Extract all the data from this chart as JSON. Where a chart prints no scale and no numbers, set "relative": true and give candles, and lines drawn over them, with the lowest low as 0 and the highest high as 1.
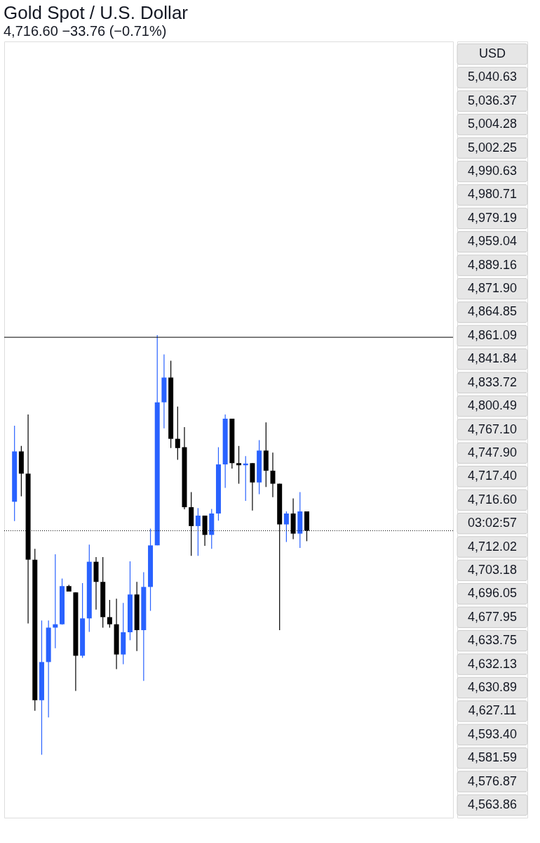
{
  "chart_data": {
    "type": "candlestick",
    "title": "Gold Spot / U.S. Dollar",
    "subtitle": "4,716.60  −33.76 (−0.71%)",
    "relative": true,
    "categories": [
      null,
      null,
      null,
      null,
      null,
      null,
      null,
      null,
      null,
      null,
      null,
      null,
      null,
      null,
      null,
      null,
      null,
      null,
      null,
      null,
      null,
      null,
      null,
      null,
      null,
      null,
      null,
      null,
      null,
      null,
      null,
      null,
      null,
      null,
      null,
      null,
      null,
      null,
      null,
      null,
      null,
      null,
      null,
      null
    ],
    "ohlc": [
      [
        0.603,
        0.784,
        0.557,
        0.723
      ],
      [
        0.723,
        0.736,
        0.616,
        0.67
      ],
      [
        0.67,
        0.811,
        0.313,
        0.465
      ],
      [
        0.465,
        0.491,
        0.105,
        0.13
      ],
      [
        0.13,
        0.32,
        0,
        0.221
      ],
      [
        0.221,
        0.32,
        0.089,
        0.303
      ],
      [
        0.303,
        0.478,
        0.254,
        0.311
      ],
      [
        0.311,
        0.42,
        0.31,
        0.402
      ],
      [
        0.402,
        0.405,
        0.389,
        0.389
      ],
      [
        0.387,
        0.387,
        0.152,
        0.236
      ],
      [
        0.236,
        0.409,
        0.231,
        0.325
      ],
      [
        0.325,
        0.501,
        0.293,
        0.46
      ],
      [
        0.46,
        0.471,
        0.346,
        0.412
      ],
      [
        0.412,
        0.471,
        0.303,
        0.328
      ],
      [
        0.328,
        0.369,
        0.303,
        0.311
      ],
      [
        0.311,
        0.372,
        0.204,
        0.239
      ],
      [
        0.239,
        0.362,
        0.216,
        0.292
      ],
      [
        0.292,
        0.461,
        0.273,
        0.382
      ],
      [
        0.382,
        0.412,
        0.247,
        0.297
      ],
      [
        0.297,
        0.435,
        0.176,
        0.4
      ],
      [
        0.4,
        0.539,
        0.343,
        0.499
      ],
      [
        0.499,
        1,
        0.499,
        0.84
      ],
      [
        0.84,
        0.954,
        0.778,
        0.899
      ],
      [
        0.899,
        0.939,
        0.731,
        0.753
      ],
      [
        0.753,
        0.83,
        0.703,
        0.731
      ],
      [
        0.733,
        0.781,
        0.585,
        0.59
      ],
      [
        0.59,
        0.626,
        0.474,
        0.545
      ],
      [
        0.545,
        0.588,
        0.474,
        0.57
      ],
      [
        0.57,
        0.57,
        0.498,
        0.524
      ],
      [
        0.524,
        0.586,
        0.491,
        0.575
      ],
      [
        0.575,
        0.733,
        0.558,
        0.692
      ],
      [
        0.692,
        0.811,
        0.636,
        0.801
      ],
      [
        0.801,
        0.801,
        0.682,
        0.695
      ],
      [
        0.695,
        0.736,
        0.646,
        0.69
      ],
      [
        0.69,
        0.712,
        0.605,
        0.694
      ],
      [
        0.695,
        0.695,
        0.582,
        0.649
      ],
      [
        0.649,
        0.75,
        0.621,
        0.725
      ],
      [
        0.725,
        0.792,
        0.638,
        0.677
      ],
      [
        0.677,
        0.72,
        0.614,
        0.646
      ],
      [
        0.646,
        0.646,
        0.297,
        0.549
      ],
      [
        0.549,
        0.58,
        0.507,
        0.575
      ],
      [
        0.575,
        0.611,
        0.514,
        0.527
      ],
      [
        0.527,
        0.626,
        0.493,
        0.58
      ],
      [
        0.58,
        0.58,
        0.509,
        0.534
      ]
    ],
    "colors": [
      "#2962ff",
      "#000000",
      "#000000",
      "#000000",
      "#2962ff",
      "#2962ff",
      "#2962ff",
      "#2962ff",
      "#000000",
      "#000000",
      "#2962ff",
      "#2962ff",
      "#000000",
      "#000000",
      "#000000",
      "#000000",
      "#2962ff",
      "#2962ff",
      "#000000",
      "#2962ff",
      "#2962ff",
      "#2962ff",
      "#2962ff",
      "#000000",
      "#000000",
      "#000000",
      "#000000",
      "#2962ff",
      "#000000",
      "#2962ff",
      "#2962ff",
      "#2962ff",
      "#000000",
      "#000000",
      "#2962ff",
      "#000000",
      "#2962ff",
      "#000000",
      "#000000",
      "#000000",
      "#2962ff",
      "#000000",
      "#2962ff",
      "#000000"
    ],
    "ref_lines": [
      {
        "axis": "y",
        "value": 0.534,
        "line_style": "dotted",
        "color": "#000000"
      },
      {
        "axis": "y",
        "value": 0.995,
        "line_style": "solid",
        "color": "#000000"
      }
    ],
    "annotations": [
      "USD",
      "5,040.63",
      "5,036.37",
      "5,004.28",
      "5,002.25",
      "4,990.63",
      "4,980.71",
      "4,979.19",
      "4,959.04",
      "4,889.16",
      "4,871.90",
      "4,864.85",
      "4,861.09",
      "4,841.84",
      "4,833.72",
      "4,800.49",
      "4,767.10",
      "4,747.90",
      "4,717.40",
      "4,716.60",
      "03:02:57",
      "4,712.02",
      "4,703.18",
      "4,696.05",
      "4,677.95",
      "4,633.75",
      "4,632.13",
      "4,630.89",
      "4,627.11",
      "4,593.40",
      "4,581.59",
      "4,576.87",
      "4,563.86"
    ]
  }
}
